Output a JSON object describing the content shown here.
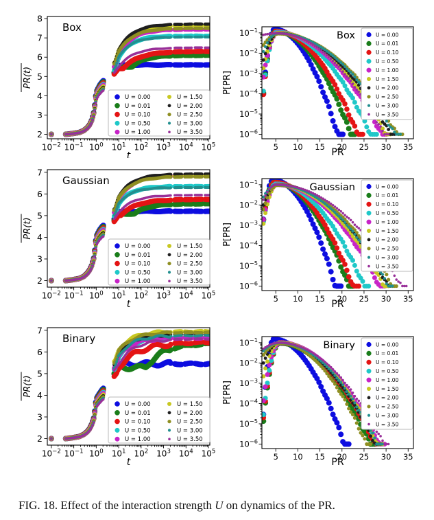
{
  "caption": {
    "part1": "FIG. 18. Effect of the interaction strength ",
    "u": "U",
    "part2": " on dynamics of the PR."
  },
  "legend_labels": [
    "U = 0.00",
    "U = 0.01",
    "U = 0.10",
    "U = 0.50",
    "U = 1.00",
    "U = 1.50",
    "U = 2.00",
    "U = 2.50",
    "U = 3.00",
    "U = 3.50"
  ],
  "colors": [
    "#0d0de0",
    "#1a7d1a",
    "#e41414",
    "#1fc8c8",
    "#c724c7",
    "#c8c822",
    "#1f1f1f",
    "#8f8f22",
    "#228f8f",
    "#993099"
  ],
  "marker_radii": [
    4.0,
    4.0,
    3.8,
    3.5,
    3.5,
    3.0,
    2.4,
    2.6,
    2.1,
    1.8
  ],
  "chart_data": [
    {
      "id": "box-left",
      "type": "scatter",
      "title": "Box",
      "xlabel": "t",
      "ylabel": "PR(t)",
      "ylabel_overline": true,
      "xscale": "log",
      "yscale": "linear",
      "xlim_log10": [
        -2.18,
        5.06
      ],
      "ylim": [
        1.77,
        8.11
      ],
      "xticks_exp": [
        -2,
        -1,
        0,
        1,
        2,
        3,
        4,
        5
      ],
      "yticks": [
        2,
        3,
        4,
        5,
        6,
        7,
        8
      ],
      "legend_position": "lower-right",
      "legend_columns": 2,
      "noise": 0.015,
      "early_anchors": [
        [
          -2.0,
          2.0
        ],
        [
          -1.35,
          2.0
        ],
        [
          -1.0,
          2.05
        ],
        [
          -0.75,
          2.1
        ],
        [
          -0.55,
          2.2
        ],
        [
          -0.4,
          2.35
        ],
        [
          -0.3,
          2.5
        ],
        [
          -0.2,
          2.75
        ],
        [
          -0.1,
          3.2
        ],
        [
          0,
          4.2
        ],
        [
          0.15,
          4.55
        ],
        [
          0.3,
          4.78
        ]
      ],
      "series": [
        {
          "label": "U = 0.00",
          "color": "#0d0de0",
          "start": 5.5,
          "plateau": 5.6,
          "rise_start_log10t": 0.85,
          "rise_tau": 0.3
        },
        {
          "label": "U = 0.01",
          "color": "#1a7d1a",
          "start": 5.5,
          "plateau": 6.1,
          "rise_start_log10t": 1.6,
          "rise_tau": 0.55
        },
        {
          "label": "U = 0.10",
          "color": "#e41414",
          "start": 5.42,
          "plateau": 6.3,
          "rise_start_log10t": 1.2,
          "rise_tau": 0.7
        },
        {
          "label": "U = 0.50",
          "color": "#1fc8c8",
          "start": 5.62,
          "plateau": 7.1,
          "rise_start_log10t": 0.85,
          "rise_tau": 0.55
        },
        {
          "label": "U = 1.00",
          "color": "#c724c7",
          "start": 5.8,
          "plateau": 7.45,
          "rise_start_log10t": 0.85,
          "rise_tau": 0.6
        },
        {
          "label": "U = 1.50",
          "color": "#c8c822",
          "start": 6.0,
          "plateau": 7.65,
          "rise_start_log10t": 0.85,
          "rise_tau": 0.62
        },
        {
          "label": "U = 2.00",
          "color": "#1f1f1f",
          "start": 6.02,
          "plateau": 7.72,
          "rise_start_log10t": 0.85,
          "rise_tau": 0.62
        },
        {
          "label": "U = 2.50",
          "color": "#8f8f22",
          "start": 5.95,
          "plateau": 7.5,
          "rise_start_log10t": 0.85,
          "rise_tau": 0.62
        },
        {
          "label": "U = 3.00",
          "color": "#228f8f",
          "start": 5.68,
          "plateau": 7.05,
          "rise_start_log10t": 0.85,
          "rise_tau": 0.55
        },
        {
          "label": "U = 3.50",
          "color": "#993099",
          "start": 5.5,
          "plateau": 6.5,
          "rise_start_log10t": 1.0,
          "rise_tau": 0.65
        }
      ]
    },
    {
      "id": "box-right",
      "type": "scatter",
      "title": "Box",
      "xlabel": "PR",
      "ylabel": "P[PR]",
      "xscale": "linear",
      "yscale": "log",
      "xlim": [
        1.85,
        36.2
      ],
      "ylim_exp": [
        -6.22,
        -0.7
      ],
      "xticks": [
        5,
        10,
        15,
        20,
        25,
        30,
        35
      ],
      "yticks_exp": [
        -1,
        -2,
        -3,
        -4,
        -5,
        -6
      ],
      "legend_position": "upper-right",
      "legend_columns": 1,
      "series": [
        {
          "label": "U = 0.00",
          "color": "#0d0de0",
          "y_at_left_edge": 0.0001,
          "peak_x": 4.7,
          "peak_y": 0.15,
          "x_at_1e-6": 19.0
        },
        {
          "label": "U = 0.01",
          "color": "#1a7d1a",
          "y_at_left_edge": 0.0001,
          "peak_x": 4.9,
          "peak_y": 0.12,
          "x_at_1e-6": 22.0
        },
        {
          "label": "U = 0.10",
          "color": "#e41414",
          "y_at_left_edge": 8.5e-05,
          "peak_x": 5.0,
          "peak_y": 0.12,
          "x_at_1e-6": 23.5
        },
        {
          "label": "U = 0.50",
          "color": "#1fc8c8",
          "y_at_left_edge": 0.00014,
          "peak_x": 5.2,
          "peak_y": 0.11,
          "x_at_1e-6": 26.5
        },
        {
          "label": "U = 1.00",
          "color": "#c724c7",
          "y_at_left_edge": 0.0007,
          "peak_x": 5.4,
          "peak_y": 0.1,
          "x_at_1e-6": 29.0
        },
        {
          "label": "U = 1.50",
          "color": "#c8c822",
          "y_at_left_edge": 0.0018,
          "peak_x": 5.5,
          "peak_y": 0.1,
          "x_at_1e-6": 30.0
        },
        {
          "label": "U = 2.00",
          "color": "#1f1f1f",
          "y_at_left_edge": 0.0045,
          "peak_x": 5.6,
          "peak_y": 0.095,
          "x_at_1e-6": 31.0
        },
        {
          "label": "U = 2.50",
          "color": "#8f8f22",
          "y_at_left_edge": 0.025,
          "peak_x": 5.6,
          "peak_y": 0.09,
          "x_at_1e-6": 32.5
        },
        {
          "label": "U = 3.00",
          "color": "#228f8f",
          "y_at_left_edge": 0.012,
          "peak_x": 5.4,
          "peak_y": 0.095,
          "x_at_1e-6": 32.0
        },
        {
          "label": "U = 3.50",
          "color": "#993099",
          "y_at_left_edge": 0.08,
          "peak_x": 5.4,
          "peak_y": 0.095,
          "x_at_1e-6": 29.5
        }
      ]
    },
    {
      "id": "gaussian-left",
      "type": "scatter",
      "title": "Gaussian",
      "xlabel": "t",
      "ylabel": "PR(t)",
      "ylabel_overline": true,
      "xscale": "log",
      "yscale": "linear",
      "xlim_log10": [
        -2.18,
        5.06
      ],
      "ylim": [
        1.7,
        7.12
      ],
      "xticks_exp": [
        -2,
        -1,
        0,
        1,
        2,
        3,
        4,
        5
      ],
      "yticks": [
        2,
        3,
        4,
        5,
        6,
        7
      ],
      "legend_position": "lower-right",
      "legend_columns": 2,
      "noise": 0.015,
      "early_anchors": [
        [
          -2.0,
          2.0
        ],
        [
          -1.35,
          2.0
        ],
        [
          -1.0,
          2.05
        ],
        [
          -0.75,
          2.1
        ],
        [
          -0.55,
          2.2
        ],
        [
          -0.4,
          2.35
        ],
        [
          -0.3,
          2.5
        ],
        [
          -0.2,
          2.72
        ],
        [
          -0.1,
          3.1
        ],
        [
          0,
          4.05
        ],
        [
          0.15,
          4.35
        ],
        [
          0.3,
          4.55
        ]
      ],
      "series": [
        {
          "label": "U = 0.00",
          "color": "#0d0de0",
          "start": 5.15,
          "plateau": 5.2,
          "rise_start_log10t": 0.85,
          "rise_tau": 0.3
        },
        {
          "label": "U = 0.01",
          "color": "#1a7d1a",
          "start": 5.08,
          "plateau": 5.55,
          "rise_start_log10t": 1.7,
          "rise_tau": 0.6
        },
        {
          "label": "U = 0.10",
          "color": "#e41414",
          "start": 5.02,
          "plateau": 5.75,
          "rise_start_log10t": 1.1,
          "rise_tau": 0.7
        },
        {
          "label": "U = 0.50",
          "color": "#1fc8c8",
          "start": 5.28,
          "plateau": 6.35,
          "rise_start_log10t": 0.85,
          "rise_tau": 0.55
        },
        {
          "label": "U = 1.00",
          "color": "#c724c7",
          "start": 5.45,
          "plateau": 6.85,
          "rise_start_log10t": 0.85,
          "rise_tau": 0.6
        },
        {
          "label": "U = 1.50",
          "color": "#c8c822",
          "start": 5.55,
          "plateau": 6.85,
          "rise_start_log10t": 0.85,
          "rise_tau": 0.62
        },
        {
          "label": "U = 2.00",
          "color": "#1f1f1f",
          "start": 5.6,
          "plateau": 6.92,
          "rise_start_log10t": 0.85,
          "rise_tau": 0.62
        },
        {
          "label": "U = 2.50",
          "color": "#8f8f22",
          "start": 5.55,
          "plateau": 6.8,
          "rise_start_log10t": 0.85,
          "rise_tau": 0.62
        },
        {
          "label": "U = 3.00",
          "color": "#228f8f",
          "start": 5.32,
          "plateau": 6.3,
          "rise_start_log10t": 0.85,
          "rise_tau": 0.55
        },
        {
          "label": "U = 3.50",
          "color": "#993099",
          "start": 5.15,
          "plateau": 5.95,
          "rise_start_log10t": 1.0,
          "rise_tau": 0.65
        }
      ]
    },
    {
      "id": "gaussian-right",
      "type": "scatter",
      "title": "Gaussian",
      "xlabel": "PR",
      "ylabel": "P[PR]",
      "xscale": "linear",
      "yscale": "log",
      "xlim": [
        1.85,
        36.2
      ],
      "ylim_exp": [
        -6.22,
        -0.7
      ],
      "xticks": [
        5,
        10,
        15,
        20,
        25,
        30,
        35
      ],
      "yticks_exp": [
        -1,
        -2,
        -3,
        -4,
        -5,
        -6
      ],
      "legend_position": "upper-right",
      "legend_columns": 1,
      "series": [
        {
          "label": "U = 0.00",
          "color": "#0d0de0",
          "y_at_left_edge": 0.002,
          "peak_x": 4.4,
          "peak_y": 0.17,
          "x_at_1e-6": 18.5
        },
        {
          "label": "U = 0.01",
          "color": "#1a7d1a",
          "y_at_left_edge": 0.0018,
          "peak_x": 4.6,
          "peak_y": 0.13,
          "x_at_1e-6": 21.5
        },
        {
          "label": "U = 0.10",
          "color": "#e41414",
          "y_at_left_edge": 0.0016,
          "peak_x": 4.7,
          "peak_y": 0.13,
          "x_at_1e-6": 22.5
        },
        {
          "label": "U = 0.50",
          "color": "#1fc8c8",
          "y_at_left_edge": 0.0015,
          "peak_x": 5.0,
          "peak_y": 0.11,
          "x_at_1e-6": 25.0
        },
        {
          "label": "U = 1.00",
          "color": "#c724c7",
          "y_at_left_edge": 0.002,
          "peak_x": 5.2,
          "peak_y": 0.1,
          "x_at_1e-6": 28.5
        },
        {
          "label": "U = 1.50",
          "color": "#c8c822",
          "y_at_left_edge": 0.0012,
          "peak_x": 5.3,
          "peak_y": 0.1,
          "x_at_1e-6": 29.5
        },
        {
          "label": "U = 2.00",
          "color": "#1f1f1f",
          "y_at_left_edge": 0.01,
          "peak_x": 5.4,
          "peak_y": 0.1,
          "x_at_1e-6": 30.5
        },
        {
          "label": "U = 2.50",
          "color": "#8f8f22",
          "y_at_left_edge": 0.006,
          "peak_x": 5.4,
          "peak_y": 0.095,
          "x_at_1e-6": 31.5
        },
        {
          "label": "U = 3.00",
          "color": "#228f8f",
          "y_at_left_edge": 0.025,
          "peak_x": 5.2,
          "peak_y": 0.1,
          "x_at_1e-6": 30.5
        },
        {
          "label": "U = 3.50",
          "color": "#993099",
          "y_at_left_edge": 0.018,
          "peak_x": 5.2,
          "peak_y": 0.1,
          "x_at_1e-6": 33.5
        }
      ]
    },
    {
      "id": "binary-left",
      "type": "scatter",
      "title": "Binary",
      "xlabel": "t",
      "ylabel": "PR(t)",
      "ylabel_overline": true,
      "xscale": "log",
      "yscale": "linear",
      "xlim_log10": [
        -2.18,
        5.06
      ],
      "ylim": [
        1.7,
        7.12
      ],
      "xticks_exp": [
        -2,
        -1,
        0,
        1,
        2,
        3,
        4,
        5
      ],
      "yticks": [
        2,
        3,
        4,
        5,
        6,
        7
      ],
      "legend_position": "lower-right",
      "legend_columns": 2,
      "noise": 0.05,
      "early_anchors": [
        [
          -2.0,
          2.0
        ],
        [
          -1.35,
          2.0
        ],
        [
          -1.0,
          2.05
        ],
        [
          -0.75,
          2.1
        ],
        [
          -0.55,
          2.2
        ],
        [
          -0.4,
          2.33
        ],
        [
          -0.3,
          2.47
        ],
        [
          -0.2,
          2.68
        ],
        [
          -0.1,
          3.0
        ],
        [
          0,
          3.85
        ],
        [
          0.15,
          4.1
        ],
        [
          0.3,
          4.32
        ]
      ],
      "series": [
        {
          "label": "U = 0.00",
          "color": "#0d0de0",
          "start": 5.32,
          "plateau": 5.45,
          "rise_start_log10t": 0.85,
          "rise_tau": 0.3
        },
        {
          "label": "U = 0.01",
          "color": "#1a7d1a",
          "start": 5.28,
          "plateau": 6.4,
          "rise_start_log10t": 2.2,
          "rise_tau": 0.8
        },
        {
          "label": "U = 0.10",
          "color": "#e41414",
          "start": 5.15,
          "plateau": 6.45,
          "rise_start_log10t": 0.9,
          "rise_tau": 0.9
        },
        {
          "label": "U = 0.50",
          "color": "#1fc8c8",
          "start": 5.5,
          "plateau": 6.68,
          "rise_start_log10t": 0.85,
          "rise_tau": 0.6
        },
        {
          "label": "U = 1.00",
          "color": "#c724c7",
          "start": 5.55,
          "plateau": 6.65,
          "rise_start_log10t": 0.85,
          "rise_tau": 0.6
        },
        {
          "label": "U = 1.50",
          "color": "#c8c822",
          "start": 5.85,
          "plateau": 6.95,
          "rise_start_log10t": 0.85,
          "rise_tau": 0.62
        },
        {
          "label": "U = 2.00",
          "color": "#1f1f1f",
          "start": 5.72,
          "plateau": 6.82,
          "rise_start_log10t": 0.85,
          "rise_tau": 0.62
        },
        {
          "label": "U = 2.50",
          "color": "#8f8f22",
          "start": 5.8,
          "plateau": 6.9,
          "rise_start_log10t": 0.85,
          "rise_tau": 0.62
        },
        {
          "label": "U = 3.00",
          "color": "#228f8f",
          "start": 5.55,
          "plateau": 6.75,
          "rise_start_log10t": 0.85,
          "rise_tau": 0.6
        },
        {
          "label": "U = 3.50",
          "color": "#993099",
          "start": 5.45,
          "plateau": 6.6,
          "rise_start_log10t": 1.0,
          "rise_tau": 0.7
        }
      ]
    },
    {
      "id": "binary-right",
      "type": "scatter",
      "title": "Binary",
      "xlabel": "PR",
      "ylabel": "P[PR]",
      "xscale": "linear",
      "yscale": "log",
      "xlim": [
        1.85,
        36.2
      ],
      "ylim_exp": [
        -6.22,
        -0.7
      ],
      "xticks": [
        5,
        10,
        15,
        20,
        25,
        30,
        35
      ],
      "yticks_exp": [
        -1,
        -2,
        -3,
        -4,
        -5,
        -6
      ],
      "legend_position": "upper-right",
      "legend_columns": 1,
      "series": [
        {
          "label": "U = 0.00",
          "color": "#0d0de0",
          "y_at_left_edge": 3e-05,
          "peak_x": 4.5,
          "peak_y": 0.15,
          "x_at_1e-6": 20.5
        },
        {
          "label": "U = 0.01",
          "color": "#1a7d1a",
          "y_at_left_edge": 1.2e-05,
          "peak_x": 5.8,
          "peak_y": 0.095,
          "x_at_1e-6": 26.5
        },
        {
          "label": "U = 0.10",
          "color": "#e41414",
          "y_at_left_edge": 1.8e-05,
          "peak_x": 5.8,
          "peak_y": 0.1,
          "x_at_1e-6": 27.5
        },
        {
          "label": "U = 0.50",
          "color": "#1fc8c8",
          "y_at_left_edge": 3e-05,
          "peak_x": 5.8,
          "peak_y": 0.1,
          "x_at_1e-6": 28.0
        },
        {
          "label": "U = 1.00",
          "color": "#c724c7",
          "y_at_left_edge": 0.00015,
          "peak_x": 5.8,
          "peak_y": 0.1,
          "x_at_1e-6": 28.5
        },
        {
          "label": "U = 1.50",
          "color": "#c8c822",
          "y_at_left_edge": 0.0022,
          "peak_x": 5.8,
          "peak_y": 0.1,
          "x_at_1e-6": 28.0
        },
        {
          "label": "U = 2.00",
          "color": "#1f1f1f",
          "y_at_left_edge": 0.01,
          "peak_x": 5.8,
          "peak_y": 0.098,
          "x_at_1e-6": 27.5
        },
        {
          "label": "U = 2.50",
          "color": "#8f8f22",
          "y_at_left_edge": 0.025,
          "peak_x": 5.8,
          "peak_y": 0.096,
          "x_at_1e-6": 25.5
        },
        {
          "label": "U = 3.00",
          "color": "#228f8f",
          "y_at_left_edge": 0.04,
          "peak_x": 5.8,
          "peak_y": 0.1,
          "x_at_1e-6": 28.0
        },
        {
          "label": "U = 3.50",
          "color": "#993099",
          "y_at_left_edge": 0.05,
          "peak_x": 5.8,
          "peak_y": 0.1,
          "x_at_1e-6": 29.5
        }
      ]
    }
  ]
}
